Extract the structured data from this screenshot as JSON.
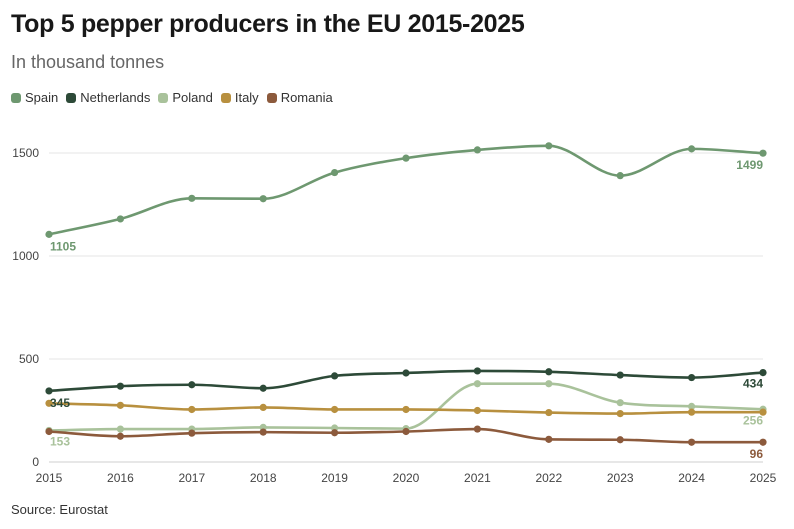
{
  "title": "Top 5 pepper producers in the EU 2015-2025",
  "subtitle": "In thousand tonnes",
  "source": "Source: Eurostat",
  "chart_data": {
    "type": "line",
    "title": "Top 5 pepper producers in the EU 2015-2025",
    "subtitle": "In thousand tonnes",
    "xlabel": "",
    "ylabel": "",
    "x": [
      2015,
      2016,
      2017,
      2018,
      2019,
      2020,
      2021,
      2022,
      2023,
      2024,
      2025
    ],
    "xlim": [
      2015,
      2025
    ],
    "ylim": [
      0,
      1500
    ],
    "yticks": [
      0,
      500,
      1000,
      1500
    ],
    "grid": true,
    "legend_position": "top-left",
    "series": [
      {
        "name": "Spain",
        "color": "#6e9870",
        "values": [
          1105,
          1180,
          1280,
          1278,
          1405,
          1475,
          1515,
          1535,
          1390,
          1520,
          1499
        ]
      },
      {
        "name": "Netherlands",
        "color": "#2d4a38",
        "values": [
          345,
          368,
          375,
          358,
          418,
          432,
          442,
          438,
          422,
          410,
          434
        ]
      },
      {
        "name": "Poland",
        "color": "#a9c29b",
        "values": [
          153,
          160,
          160,
          168,
          165,
          162,
          380,
          380,
          288,
          270,
          256
        ]
      },
      {
        "name": "Italy",
        "color": "#b8903f",
        "values": [
          285,
          275,
          255,
          265,
          255,
          255,
          250,
          240,
          235,
          242,
          242
        ]
      },
      {
        "name": "Romania",
        "color": "#8c5a3c",
        "values": [
          148,
          125,
          140,
          145,
          142,
          148,
          160,
          110,
          108,
          96,
          96
        ]
      }
    ],
    "end_labels": [
      {
        "series": "Spain",
        "x": 2015,
        "text": "1105"
      },
      {
        "series": "Spain",
        "x": 2025,
        "text": "1499"
      },
      {
        "series": "Netherlands",
        "x": 2015,
        "text": "345"
      },
      {
        "series": "Netherlands",
        "x": 2025,
        "text": "434"
      },
      {
        "series": "Poland",
        "x": 2015,
        "text": "153"
      },
      {
        "series": "Poland",
        "x": 2025,
        "text": "256"
      },
      {
        "series": "Romania",
        "x": 2025,
        "text": "96"
      }
    ]
  }
}
